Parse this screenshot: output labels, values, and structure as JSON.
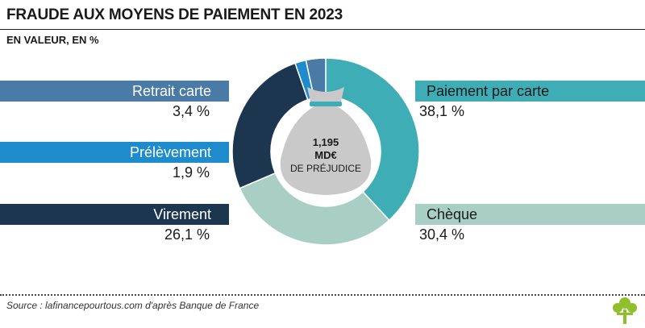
{
  "title": "FRAUDE AUX MOYENS DE PAIEMENT EN 2023",
  "subtitle": "EN VALEUR, EN %",
  "center": {
    "line1": "1,195",
    "line2": "MD€",
    "line3": "DE PRÉJUDICE"
  },
  "source": "Source : lafinancepourtous.com d'après Banque de France",
  "colors": {
    "carte": "#3fadb5",
    "cheque": "#a9cfc4",
    "virement": "#1c3650",
    "prelevement": "#1d8bcc",
    "retrait": "#4a7aa6",
    "bag": "#c9c9c9",
    "logo": "#8fbf2a"
  },
  "chart_data": {
    "type": "pie",
    "categories": [
      "Paiement par carte",
      "Chèque",
      "Virement",
      "Prélèvement",
      "Retrait carte"
    ],
    "values": [
      38.1,
      30.4,
      26.1,
      1.9,
      3.4
    ],
    "value_labels": [
      "38,1 %",
      "30,4 %",
      "26,1 %",
      "1,9 %",
      "3,4 %"
    ],
    "donut": true,
    "start": "top",
    "direction": "clockwise",
    "legend": "side labels"
  }
}
